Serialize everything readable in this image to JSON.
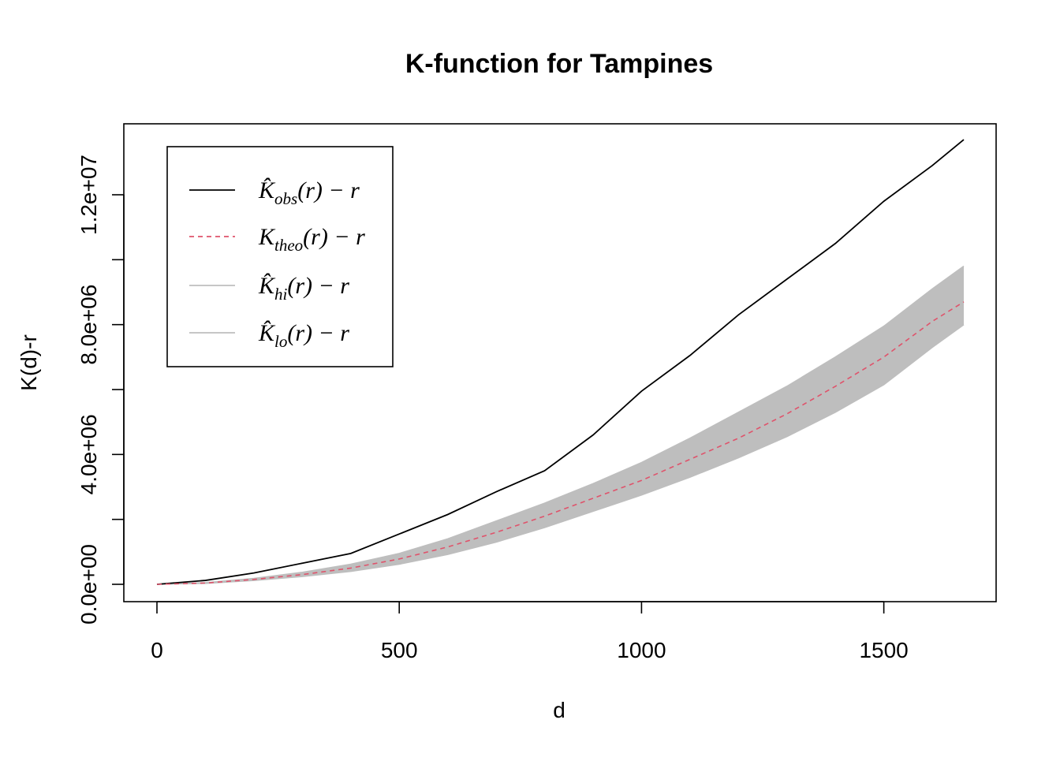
{
  "chart_data": {
    "type": "line",
    "title": "K-function for Tampines",
    "xlabel": "d",
    "ylabel": "K(d)-r",
    "xlim": [
      0,
      1665
    ],
    "ylim": [
      0,
      13800000
    ],
    "x_ticks": [
      0,
      500,
      1000,
      1500
    ],
    "x_tick_labels": [
      "0",
      "500",
      "1000",
      "1500"
    ],
    "y_ticks": [
      0,
      4000000,
      8000000,
      12000000
    ],
    "y_tick_labels": [
      "0.0e+00",
      "4.0e+06",
      "8.0e+06",
      "1.2e+07"
    ],
    "y_minor_ticks": [
      2000000,
      6000000,
      10000000
    ],
    "legend_position": "top-left",
    "x": [
      0,
      100,
      200,
      300,
      400,
      500,
      600,
      700,
      800,
      900,
      1000,
      1100,
      1200,
      1300,
      1400,
      1500,
      1600,
      1665
    ],
    "series": [
      {
        "name": "obs",
        "legend": {
          "main": "K̂",
          "sub": "obs",
          "tail": "(r) − r"
        },
        "color": "#000000",
        "dash": "solid",
        "values": [
          0,
          120000,
          350000,
          650000,
          950000,
          1550000,
          2150000,
          2850000,
          3500000,
          4600000,
          5950000,
          7050000,
          8300000,
          9400000,
          10500000,
          11800000,
          12900000,
          13700000
        ]
      },
      {
        "name": "theo",
        "legend": {
          "main": "K",
          "sub": "theo",
          "tail": "(r) − r"
        },
        "color": "#DF536B",
        "dash": "dashed",
        "values": [
          0,
          40000,
          150000,
          300000,
          500000,
          780000,
          1150000,
          1600000,
          2100000,
          2650000,
          3200000,
          3850000,
          4500000,
          5250000,
          6100000,
          7000000,
          8100000,
          8700000
        ]
      },
      {
        "name": "hi",
        "legend": {
          "main": "K̂",
          "sub": "hi",
          "tail": "(r) − r"
        },
        "color": "#BEBEBE",
        "dash": "solid",
        "values": [
          0,
          50000,
          180000,
          370000,
          620000,
          950000,
          1400000,
          1950000,
          2500000,
          3100000,
          3750000,
          4500000,
          5300000,
          6100000,
          7000000,
          7950000,
          9100000,
          9800000
        ]
      },
      {
        "name": "lo",
        "legend": {
          "main": "K̂",
          "sub": "lo",
          "tail": "(r) − r"
        },
        "color": "#BEBEBE",
        "dash": "solid",
        "values": [
          0,
          30000,
          120000,
          240000,
          400000,
          620000,
          920000,
          1300000,
          1750000,
          2250000,
          2750000,
          3300000,
          3900000,
          4550000,
          5300000,
          6150000,
          7300000,
          8000000
        ]
      }
    ]
  }
}
